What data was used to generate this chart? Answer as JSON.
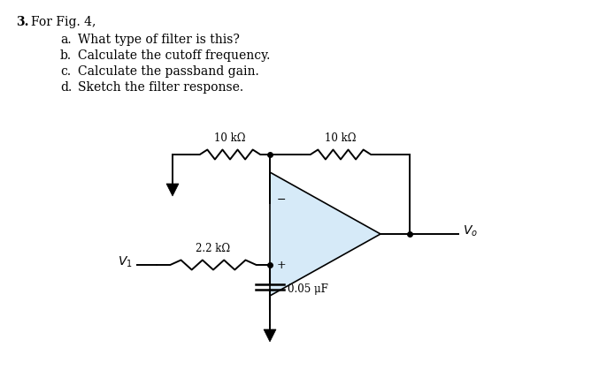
{
  "title_num": "3.",
  "title_text": "For Fig. 4,",
  "items": [
    [
      "a.",
      "What type of filter is this?"
    ],
    [
      "b.",
      "Calculate the cutoff frequency."
    ],
    [
      "c.",
      "Calculate the passband gain."
    ],
    [
      "d.",
      "Sketch the filter response."
    ]
  ],
  "background_color": "#ffffff",
  "text_color": "#000000",
  "circuit": {
    "opamp_color": "#d6eaf8",
    "opamp_outline": "#000000",
    "wire_color": "#000000",
    "label_10k_1": "10 kΩ",
    "label_10k_2": "10 kΩ",
    "label_22k": "2.2 kΩ",
    "label_cap": "0.05 μF",
    "label_minus": "−",
    "label_plus": "+"
  }
}
